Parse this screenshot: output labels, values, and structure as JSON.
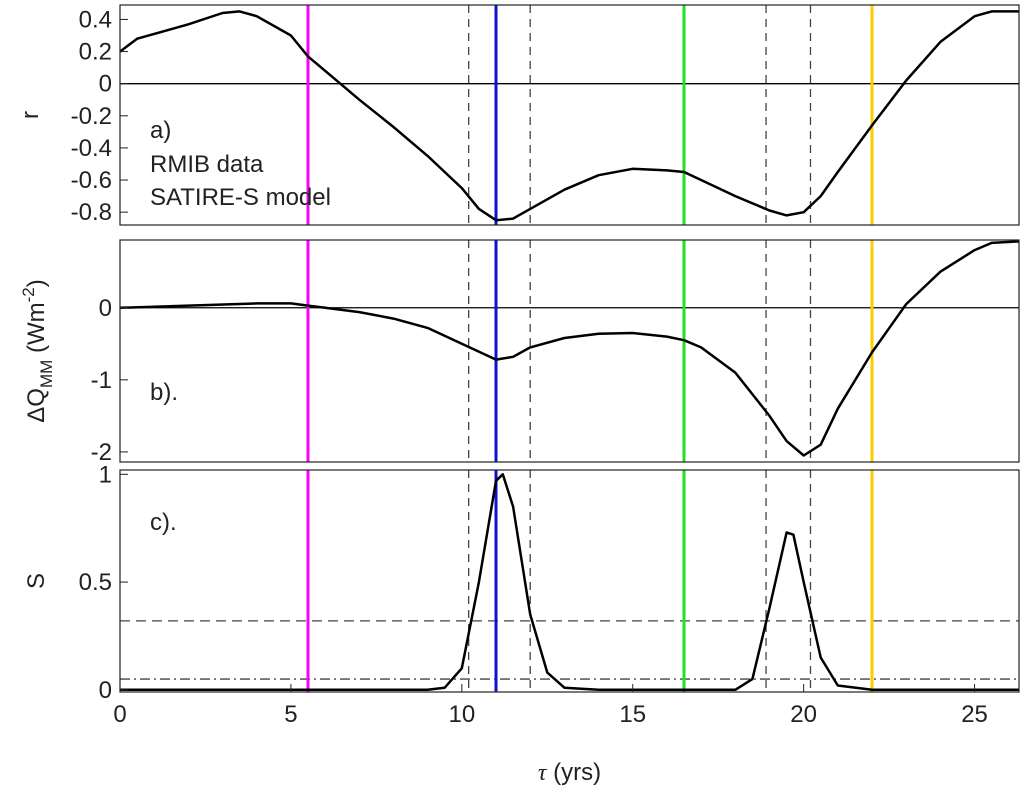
{
  "chart_data": [
    {
      "type": "line",
      "annotations": [
        "a)",
        "RMIB data",
        "SATIRE-S model"
      ],
      "ylabel": "r",
      "x": [
        0,
        0.5,
        1,
        2,
        3,
        3.5,
        4,
        5,
        5.5,
        6,
        7,
        8,
        9,
        10,
        10.5,
        11,
        11.5,
        12,
        13,
        14,
        15,
        16,
        16.5,
        17,
        18,
        19,
        19.5,
        20,
        20.5,
        21,
        22,
        23,
        24,
        25,
        25.5,
        26.3
      ],
      "series": [
        {
          "color": "#000000",
          "values": [
            0.2,
            0.28,
            0.31,
            0.37,
            0.44,
            0.45,
            0.42,
            0.3,
            0.17,
            0.08,
            -0.1,
            -0.27,
            -0.45,
            -0.65,
            -0.78,
            -0.85,
            -0.84,
            -0.78,
            -0.66,
            -0.57,
            -0.53,
            -0.54,
            -0.55,
            -0.6,
            -0.7,
            -0.79,
            -0.82,
            -0.8,
            -0.7,
            -0.55,
            -0.26,
            0.02,
            0.26,
            0.42,
            0.45,
            0.45
          ]
        }
      ],
      "xlim": [
        0,
        26.3
      ],
      "ylim": [
        -0.88,
        0.49
      ],
      "yticks": [
        0.4,
        0.2,
        0,
        -0.2,
        -0.4,
        -0.6,
        -0.8
      ],
      "vlines": [
        {
          "x": 5.5,
          "color": "#ff00ff"
        },
        {
          "x": 11,
          "color": "#1010d0"
        },
        {
          "x": 16.5,
          "color": "#22e022"
        },
        {
          "x": 22,
          "color": "#ffcc00"
        }
      ],
      "dashed_vlines": [
        10.2,
        12,
        18.9,
        20.2
      ],
      "hlines": [
        {
          "y": 0,
          "style": "solid"
        }
      ]
    },
    {
      "type": "line",
      "annotations": [
        "b)."
      ],
      "ylabel": {
        "base": "ΔQ",
        "sub": "MM",
        "unit": " (Wm",
        "sup": "-2",
        "close": ")"
      },
      "x": [
        0,
        2,
        4,
        5,
        5.5,
        6,
        7,
        8,
        9,
        10,
        11,
        11.5,
        12,
        13,
        14,
        15,
        16,
        16.5,
        17,
        18,
        19,
        19.5,
        20,
        20.5,
        21,
        22,
        23,
        24,
        25,
        25.5,
        26.3
      ],
      "series": [
        {
          "color": "#000000",
          "values": [
            0,
            0.03,
            0.06,
            0.06,
            0.03,
            0,
            -0.06,
            -0.15,
            -0.28,
            -0.5,
            -0.72,
            -0.68,
            -0.55,
            -0.42,
            -0.36,
            -0.35,
            -0.4,
            -0.45,
            -0.55,
            -0.9,
            -1.5,
            -1.85,
            -2.05,
            -1.9,
            -1.4,
            -0.62,
            0.05,
            0.5,
            0.8,
            0.9,
            0.92
          ]
        }
      ],
      "xlim": [
        0,
        26.3
      ],
      "ylim": [
        -2.14,
        0.94
      ],
      "yticks": [
        0,
        -1,
        -2
      ],
      "vlines": [
        {
          "x": 5.5,
          "color": "#ff00ff"
        },
        {
          "x": 11,
          "color": "#1010d0"
        },
        {
          "x": 16.5,
          "color": "#22e022"
        },
        {
          "x": 22,
          "color": "#ffcc00"
        }
      ],
      "dashed_vlines": [
        10.2,
        12,
        18.9,
        20.2
      ],
      "hlines": [
        {
          "y": 0,
          "style": "solid"
        }
      ]
    },
    {
      "type": "line",
      "annotations": [
        "c)."
      ],
      "ylabel": "S",
      "xlabel": {
        "symbol": "τ",
        "rest": " (yrs)"
      },
      "x": [
        0,
        9,
        9.5,
        10,
        10.5,
        11,
        11.2,
        11.5,
        12,
        12.5,
        13,
        14,
        18,
        18.5,
        19,
        19.5,
        19.7,
        20,
        20.5,
        21,
        22,
        26.3
      ],
      "series": [
        {
          "color": "#000000",
          "values": [
            0,
            0,
            0.01,
            0.1,
            0.5,
            0.97,
            1.0,
            0.85,
            0.35,
            0.08,
            0.01,
            0,
            0,
            0.05,
            0.38,
            0.73,
            0.72,
            0.5,
            0.15,
            0.02,
            0,
            0
          ]
        }
      ],
      "xlim": [
        0,
        26.3
      ],
      "ylim": [
        -0.01,
        1.02
      ],
      "yticks": [
        1,
        0.5,
        0
      ],
      "xticks": [
        0,
        5,
        10,
        15,
        20,
        25
      ],
      "vlines": [
        {
          "x": 5.5,
          "color": "#ff00ff"
        },
        {
          "x": 11,
          "color": "#1010d0"
        },
        {
          "x": 16.5,
          "color": "#22e022"
        },
        {
          "x": 22,
          "color": "#ffcc00"
        }
      ],
      "dashed_vlines": [
        10.2,
        12,
        18.9,
        20.2
      ],
      "hlines": [
        {
          "y": 0.32,
          "style": "dashed"
        },
        {
          "y": 0.05,
          "style": "dashdot"
        }
      ]
    }
  ]
}
